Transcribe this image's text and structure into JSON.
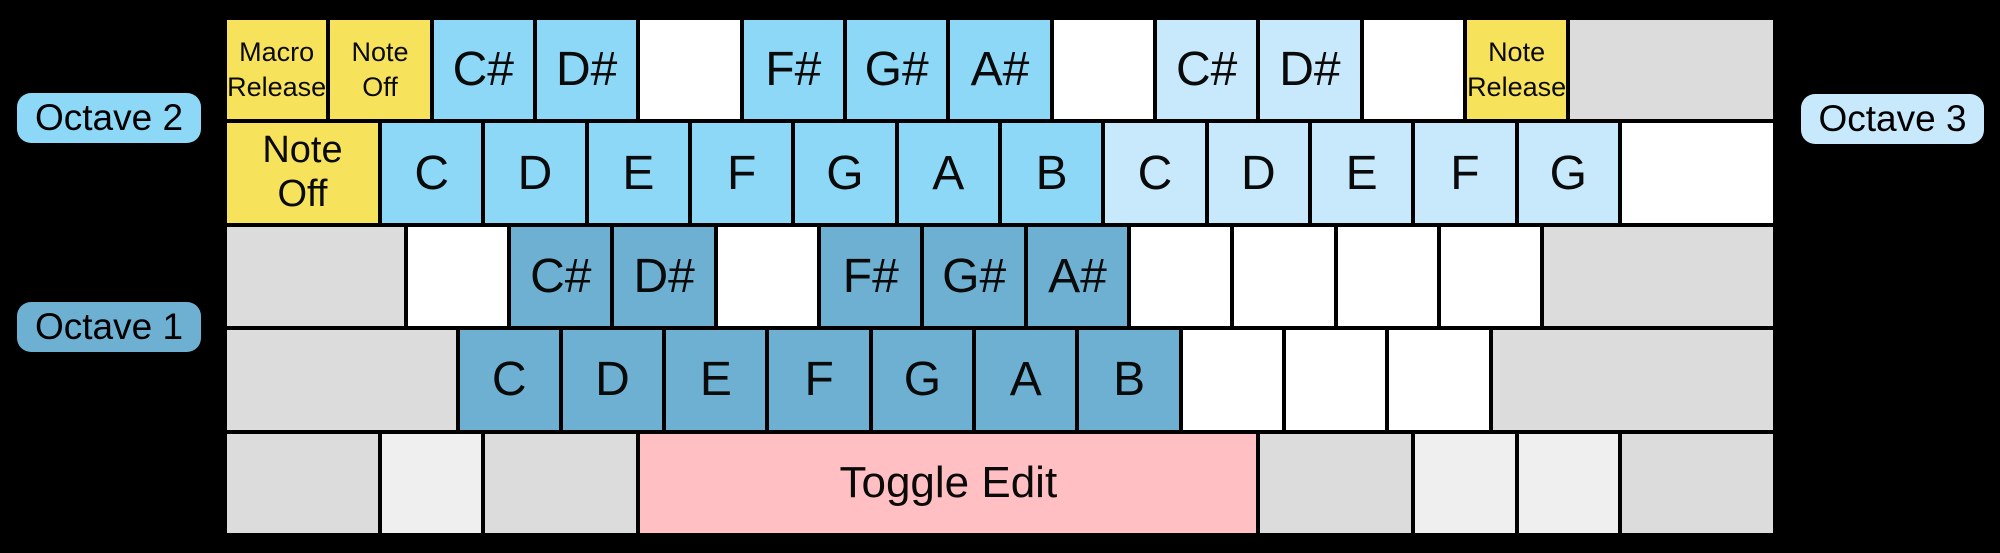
{
  "colors": {
    "macro": "#F7E35B",
    "octave1": "#6EB0D2",
    "octave2": "#8DD8F7",
    "octave3": "#C7E9FB",
    "edit": "#FFBFC3",
    "gray": "#DCDCDC",
    "light": "#EFEFEF",
    "blank": "#FFFFFF",
    "background": "#000000",
    "key_border": "#000000"
  },
  "labels": {
    "octave1": {
      "text": "Octave 1",
      "color": "octave1"
    },
    "octave2": {
      "text": "Octave 2",
      "color": "octave2"
    },
    "octave3": {
      "text": "Octave 3",
      "color": "octave3"
    }
  },
  "keyboard": {
    "units_per_row": 15,
    "rows": [
      {
        "keys": [
          {
            "id": "grave",
            "label": "Macro\nRelease",
            "color": "macro",
            "w": 1,
            "size": "small"
          },
          {
            "id": "1",
            "label": "Note\nOff",
            "color": "macro",
            "w": 1,
            "size": "small"
          },
          {
            "id": "2",
            "label": "C#",
            "color": "octave2",
            "w": 1,
            "size": "note"
          },
          {
            "id": "3",
            "label": "D#",
            "color": "octave2",
            "w": 1,
            "size": "note"
          },
          {
            "id": "4",
            "label": "",
            "color": "blank",
            "w": 1
          },
          {
            "id": "5",
            "label": "F#",
            "color": "octave2",
            "w": 1,
            "size": "note"
          },
          {
            "id": "6",
            "label": "G#",
            "color": "octave2",
            "w": 1,
            "size": "note"
          },
          {
            "id": "7",
            "label": "A#",
            "color": "octave2",
            "w": 1,
            "size": "note"
          },
          {
            "id": "8",
            "label": "",
            "color": "blank",
            "w": 1
          },
          {
            "id": "9",
            "label": "C#",
            "color": "octave3",
            "w": 1,
            "size": "note"
          },
          {
            "id": "0",
            "label": "D#",
            "color": "octave3",
            "w": 1,
            "size": "note"
          },
          {
            "id": "minus",
            "label": "",
            "color": "blank",
            "w": 1
          },
          {
            "id": "equals",
            "label": "Note\nRelease",
            "color": "macro",
            "w": 1,
            "size": "small"
          },
          {
            "id": "backspace",
            "label": "",
            "color": "gray",
            "w": 2
          }
        ]
      },
      {
        "keys": [
          {
            "id": "tab",
            "label": "Note\nOff",
            "color": "macro",
            "w": 1.5,
            "size": "medium"
          },
          {
            "id": "q",
            "label": "C",
            "color": "octave2",
            "w": 1,
            "size": "note"
          },
          {
            "id": "w",
            "label": "D",
            "color": "octave2",
            "w": 1,
            "size": "note"
          },
          {
            "id": "e",
            "label": "E",
            "color": "octave2",
            "w": 1,
            "size": "note"
          },
          {
            "id": "r",
            "label": "F",
            "color": "octave2",
            "w": 1,
            "size": "note"
          },
          {
            "id": "t",
            "label": "G",
            "color": "octave2",
            "w": 1,
            "size": "note"
          },
          {
            "id": "y",
            "label": "A",
            "color": "octave2",
            "w": 1,
            "size": "note"
          },
          {
            "id": "u",
            "label": "B",
            "color": "octave2",
            "w": 1,
            "size": "note"
          },
          {
            "id": "i",
            "label": "C",
            "color": "octave3",
            "w": 1,
            "size": "note"
          },
          {
            "id": "o",
            "label": "D",
            "color": "octave3",
            "w": 1,
            "size": "note"
          },
          {
            "id": "p",
            "label": "E",
            "color": "octave3",
            "w": 1,
            "size": "note"
          },
          {
            "id": "bracket-left",
            "label": "F",
            "color": "octave3",
            "w": 1,
            "size": "note"
          },
          {
            "id": "bracket-right",
            "label": "G",
            "color": "octave3",
            "w": 1,
            "size": "note"
          },
          {
            "id": "backslash",
            "label": "",
            "color": "blank",
            "w": 1.5
          }
        ]
      },
      {
        "keys": [
          {
            "id": "capslock",
            "label": "",
            "color": "gray",
            "w": 1.75
          },
          {
            "id": "a",
            "label": "",
            "color": "blank",
            "w": 1
          },
          {
            "id": "s",
            "label": "C#",
            "color": "octave1",
            "w": 1,
            "size": "note"
          },
          {
            "id": "d",
            "label": "D#",
            "color": "octave1",
            "w": 1,
            "size": "note"
          },
          {
            "id": "f",
            "label": "",
            "color": "blank",
            "w": 1
          },
          {
            "id": "g",
            "label": "F#",
            "color": "octave1",
            "w": 1,
            "size": "note"
          },
          {
            "id": "h",
            "label": "G#",
            "color": "octave1",
            "w": 1,
            "size": "note"
          },
          {
            "id": "j",
            "label": "A#",
            "color": "octave1",
            "w": 1,
            "size": "note"
          },
          {
            "id": "k",
            "label": "",
            "color": "blank",
            "w": 1
          },
          {
            "id": "l",
            "label": "",
            "color": "blank",
            "w": 1
          },
          {
            "id": "semicolon",
            "label": "",
            "color": "blank",
            "w": 1
          },
          {
            "id": "quote",
            "label": "",
            "color": "blank",
            "w": 1
          },
          {
            "id": "enter",
            "label": "",
            "color": "gray",
            "w": 2.25
          }
        ]
      },
      {
        "keys": [
          {
            "id": "shift-left",
            "label": "",
            "color": "gray",
            "w": 2.25
          },
          {
            "id": "z",
            "label": "C",
            "color": "octave1",
            "w": 1,
            "size": "note"
          },
          {
            "id": "x",
            "label": "D",
            "color": "octave1",
            "w": 1,
            "size": "note"
          },
          {
            "id": "c",
            "label": "E",
            "color": "octave1",
            "w": 1,
            "size": "note"
          },
          {
            "id": "v",
            "label": "F",
            "color": "octave1",
            "w": 1,
            "size": "note"
          },
          {
            "id": "b",
            "label": "G",
            "color": "octave1",
            "w": 1,
            "size": "note"
          },
          {
            "id": "n",
            "label": "A",
            "color": "octave1",
            "w": 1,
            "size": "note"
          },
          {
            "id": "m",
            "label": "B",
            "color": "octave1",
            "w": 1,
            "size": "note"
          },
          {
            "id": "comma",
            "label": "",
            "color": "blank",
            "w": 1
          },
          {
            "id": "period",
            "label": "",
            "color": "blank",
            "w": 1
          },
          {
            "id": "slash",
            "label": "",
            "color": "blank",
            "w": 1
          },
          {
            "id": "shift-right",
            "label": "",
            "color": "gray",
            "w": 2.75
          }
        ]
      },
      {
        "keys": [
          {
            "id": "ctrl-left",
            "label": "",
            "color": "gray",
            "w": 1.5
          },
          {
            "id": "win-left",
            "label": "",
            "color": "light",
            "w": 1
          },
          {
            "id": "alt-left",
            "label": "",
            "color": "gray",
            "w": 1.5
          },
          {
            "id": "space",
            "label": "Toggle Edit",
            "color": "edit",
            "w": 6,
            "size": "space"
          },
          {
            "id": "alt-right",
            "label": "",
            "color": "gray",
            "w": 1.5
          },
          {
            "id": "win-right",
            "label": "",
            "color": "light",
            "w": 1
          },
          {
            "id": "menu",
            "label": "",
            "color": "light",
            "w": 1
          },
          {
            "id": "ctrl-right",
            "label": "",
            "color": "gray",
            "w": 1.5
          }
        ]
      }
    ]
  }
}
